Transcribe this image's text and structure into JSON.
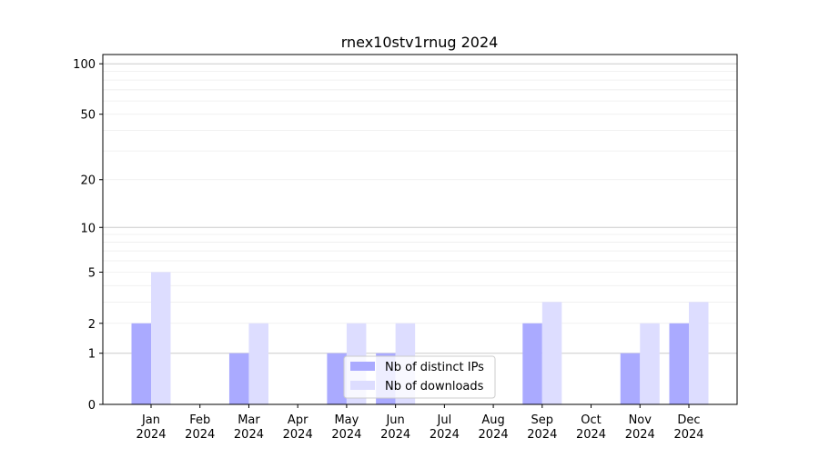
{
  "chart_data": {
    "type": "bar",
    "title": "rnex10stv1rnug 2024",
    "categories": [
      "Jan\n2024",
      "Feb\n2024",
      "Mar\n2024",
      "Apr\n2024",
      "May\n2024",
      "Jun\n2024",
      "Jul\n2024",
      "Aug\n2024",
      "Sep\n2024",
      "Oct\n2024",
      "Nov\n2024",
      "Dec\n2024"
    ],
    "series": [
      {
        "name": "Nb of distinct IPs",
        "color": "#aaaaff",
        "values": [
          2,
          0,
          1,
          0,
          1,
          1,
          0,
          0,
          2,
          0,
          1,
          2
        ]
      },
      {
        "name": "Nb of downloads",
        "color": "#ddddff",
        "values": [
          5,
          0,
          2,
          0,
          2,
          2,
          0,
          0,
          3,
          0,
          2,
          3
        ]
      }
    ],
    "yscale": "symlog",
    "yticks": [
      0,
      1,
      2,
      5,
      10,
      20,
      50,
      100
    ],
    "ylim": [
      0,
      113
    ],
    "grid": true,
    "legend_position": "lower center",
    "xlabel": "",
    "ylabel": ""
  }
}
